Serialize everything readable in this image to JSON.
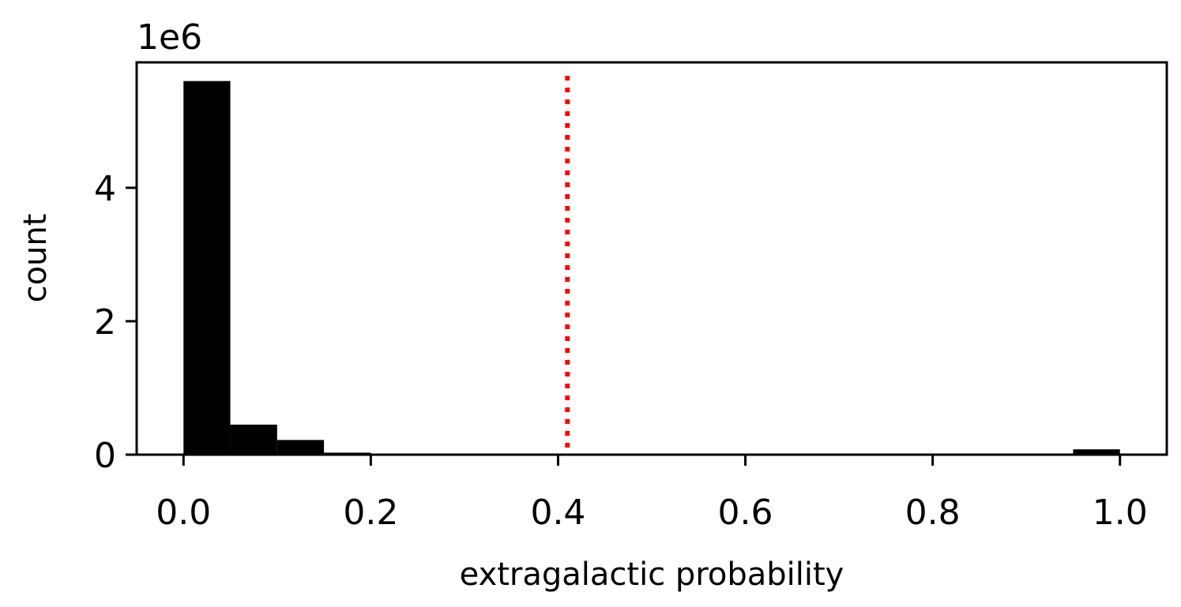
{
  "chart_data": {
    "type": "bar",
    "title": "",
    "xlabel": "extragalactic probability",
    "ylabel": "count",
    "y_offset_text": "1e6",
    "xlim": [
      -0.05,
      1.05
    ],
    "ylim": [
      0,
      5.88
    ],
    "y_scale_factor": 1000000,
    "xticks": [
      0.0,
      0.2,
      0.4,
      0.6,
      0.8,
      1.0
    ],
    "xtick_labels": [
      "0.0",
      "0.2",
      "0.4",
      "0.6",
      "0.8",
      "1.0"
    ],
    "yticks": [
      0,
      2,
      4
    ],
    "ytick_labels": [
      "0",
      "2",
      "4"
    ],
    "grid": false,
    "bar_color": "#000000",
    "bins": [
      {
        "x0": 0.0,
        "x1": 0.05,
        "value": 5.6
      },
      {
        "x0": 0.05,
        "x1": 0.1,
        "value": 0.45
      },
      {
        "x0": 0.1,
        "x1": 0.15,
        "value": 0.22
      },
      {
        "x0": 0.15,
        "x1": 0.2,
        "value": 0.03
      },
      {
        "x0": 0.2,
        "x1": 0.25,
        "value": 0.008
      },
      {
        "x0": 0.25,
        "x1": 0.3,
        "value": 0.004
      },
      {
        "x0": 0.3,
        "x1": 0.35,
        "value": 0.002
      },
      {
        "x0": 0.35,
        "x1": 0.4,
        "value": 0.001
      },
      {
        "x0": 0.4,
        "x1": 0.45,
        "value": 0.001
      },
      {
        "x0": 0.45,
        "x1": 0.5,
        "value": 0.001
      },
      {
        "x0": 0.5,
        "x1": 0.55,
        "value": 0.001
      },
      {
        "x0": 0.55,
        "x1": 0.6,
        "value": 0.001
      },
      {
        "x0": 0.6,
        "x1": 0.65,
        "value": 0.001
      },
      {
        "x0": 0.65,
        "x1": 0.7,
        "value": 0.001
      },
      {
        "x0": 0.7,
        "x1": 0.75,
        "value": 0.001
      },
      {
        "x0": 0.75,
        "x1": 0.8,
        "value": 0.001
      },
      {
        "x0": 0.8,
        "x1": 0.85,
        "value": 0.001
      },
      {
        "x0": 0.85,
        "x1": 0.9,
        "value": 0.001
      },
      {
        "x0": 0.9,
        "x1": 0.95,
        "value": 0.002
      },
      {
        "x0": 0.95,
        "x1": 1.0,
        "value": 0.08
      }
    ],
    "threshold_line": {
      "x": 0.41,
      "color": "#ff0000",
      "style": "dotted"
    }
  }
}
